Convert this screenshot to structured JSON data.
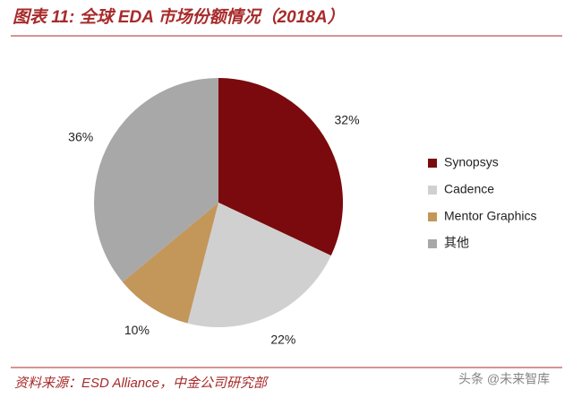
{
  "chart_data": {
    "type": "pie",
    "title": "图表 11: 全球 EDA 市场份额情况（2018A）",
    "categories": [
      "Synopsys",
      "Cadence",
      "Mentor Graphics",
      "其他"
    ],
    "values": [
      32,
      22,
      10,
      36
    ],
    "value_labels": [
      "32%",
      "22%",
      "10%",
      "36%"
    ],
    "colors": [
      "#7a0a0d",
      "#d0d0d0",
      "#c3965a",
      "#a8a8a8"
    ],
    "legend": "right",
    "source": "资料来源：ESD Alliance，中金公司研究部"
  },
  "watermark": "头条 @未来智库"
}
